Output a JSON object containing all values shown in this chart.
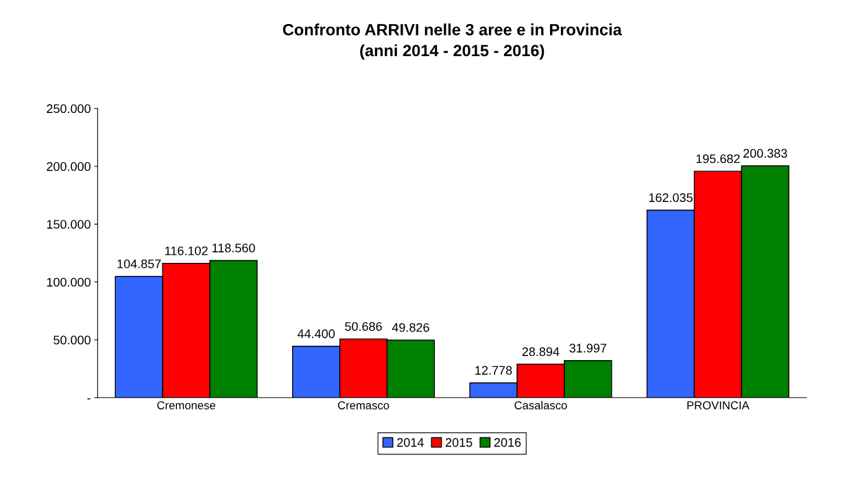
{
  "chart_data": {
    "type": "bar",
    "title": "Confronto ARRIVI nelle 3 aree e in Provincia\n(anni 2014 - 2015 - 2016)",
    "categories": [
      "Cremonese",
      "Cremasco",
      "Casalasco",
      "PROVINCIA"
    ],
    "series": [
      {
        "name": "2014",
        "color": "#3366ff",
        "values": [
          104857,
          44400,
          12778,
          162035
        ],
        "value_labels": [
          "104.857",
          "44.400",
          "12.778",
          "162.035"
        ]
      },
      {
        "name": "2015",
        "color": "#ff0000",
        "values": [
          116102,
          50686,
          28894,
          195682
        ],
        "value_labels": [
          "116.102",
          "50.686",
          "28.894",
          "195.682"
        ]
      },
      {
        "name": "2016",
        "color": "#008000",
        "values": [
          118560,
          49826,
          31997,
          200383
        ],
        "value_labels": [
          "118.560",
          "49.826",
          "31.997",
          "200.383"
        ]
      }
    ],
    "ylim": [
      0,
      250000
    ],
    "yticks": [
      {
        "value": 0,
        "label": "-"
      },
      {
        "value": 50000,
        "label": "50.000"
      },
      {
        "value": 100000,
        "label": "100.000"
      },
      {
        "value": 150000,
        "label": "150.000"
      },
      {
        "value": 200000,
        "label": "200.000"
      },
      {
        "value": 250000,
        "label": "250.000"
      }
    ],
    "legend": "bottom",
    "grid": false
  }
}
